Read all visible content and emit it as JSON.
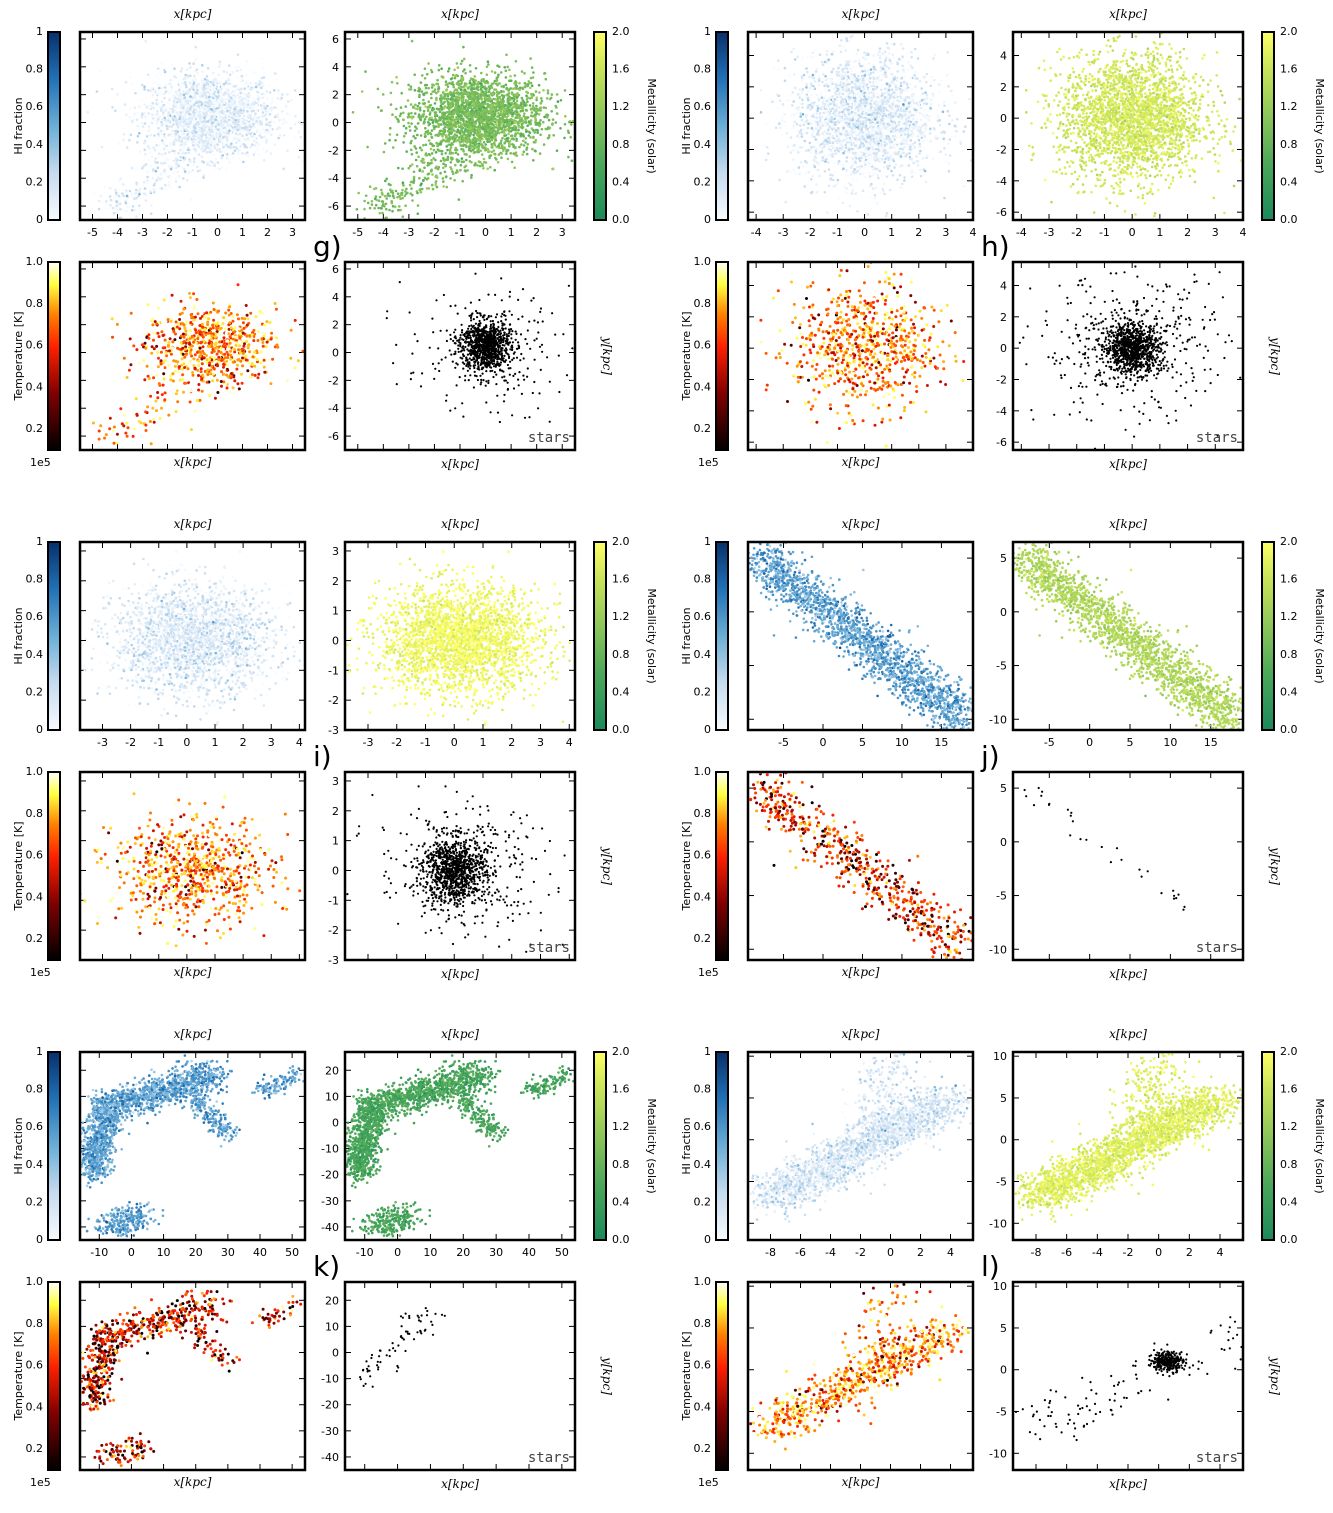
{
  "text": {
    "x_axis_label": "x[kpc]",
    "y_axis_label": "y[kpc]",
    "hi_colorbar_label": "HI fraction",
    "metal_colorbar_label": "Metallicity (solar)",
    "temp_colorbar_label": "Temperature [K]",
    "temp_colorbar_multiplier": "1e5",
    "stars_label": "stars"
  },
  "colorbar_ticks": {
    "hi": [
      "0",
      "0.2",
      "0.4",
      "0.6",
      "0.8",
      "1"
    ],
    "metal": [
      "0.0",
      "0.4",
      "0.8",
      "1.2",
      "1.6",
      "2.0"
    ],
    "temp": [
      "0.2",
      "0.4",
      "0.6",
      "0.8",
      "1.0"
    ]
  },
  "colors": {
    "hi_map": [
      "#f7fbff",
      "#c6dbef",
      "#6baed6",
      "#2171b5",
      "#08306b"
    ],
    "metal_map": [
      "#1a8a5a",
      "#4ca85a",
      "#8cc55a",
      "#c8e35a",
      "#ffff66"
    ],
    "temp_map": [
      "#000000",
      "#800000",
      "#ff2000",
      "#ff8000",
      "#ffff40",
      "#ffffff"
    ],
    "stars": "#000000"
  },
  "chart_data": [
    {
      "panel": "g)",
      "type": "scatter",
      "xticks": [
        "-5",
        "-4",
        "-3",
        "-2",
        "-1",
        "0",
        "1",
        "2",
        "3"
      ],
      "yticks": [
        "-6",
        "-4",
        "-2",
        "0",
        "2",
        "4",
        "6"
      ],
      "xlim": [
        -5.5,
        3.5
      ],
      "ylim": [
        -7,
        6.5
      ]
    },
    {
      "panel": "h)",
      "type": "scatter",
      "xticks": [
        "-4",
        "-3",
        "-2",
        "-1",
        "0",
        "1",
        "2",
        "3",
        "4"
      ],
      "yticks": [
        "-6",
        "-4",
        "-2",
        "0",
        "2",
        "4"
      ],
      "xlim": [
        -4.3,
        4.0
      ],
      "ylim": [
        -6.5,
        5.5
      ]
    },
    {
      "panel": "i)",
      "type": "scatter",
      "xticks": [
        "-3",
        "-2",
        "-1",
        "0",
        "1",
        "2",
        "3",
        "4"
      ],
      "yticks": [
        "-3",
        "-2",
        "-1",
        "0",
        "1",
        "2",
        "3"
      ],
      "xlim": [
        -3.8,
        4.2
      ],
      "ylim": [
        -3,
        3.3
      ]
    },
    {
      "panel": "j)",
      "type": "scatter",
      "xticks": [
        "-5",
        "0",
        "5",
        "10",
        "15"
      ],
      "yticks": [
        "-10",
        "-5",
        "0",
        "5"
      ],
      "xlim": [
        -9.5,
        19
      ],
      "ylim": [
        -11,
        6.5
      ]
    },
    {
      "panel": "k)",
      "type": "scatter",
      "xticks": [
        "-10",
        "0",
        "10",
        "20",
        "30",
        "40",
        "50"
      ],
      "yticks": [
        "-40",
        "-30",
        "-20",
        "-10",
        "0",
        "10",
        "20"
      ],
      "xlim": [
        -16,
        54
      ],
      "ylim": [
        -45,
        27
      ]
    },
    {
      "panel": "l)",
      "type": "scatter",
      "xticks": [
        "-8",
        "-6",
        "-4",
        "-2",
        "0",
        "2",
        "4"
      ],
      "yticks": [
        "-10",
        "-5",
        "0",
        "5",
        "10"
      ],
      "xlim": [
        -9.5,
        5.5
      ],
      "ylim": [
        -12,
        10.5
      ]
    }
  ]
}
